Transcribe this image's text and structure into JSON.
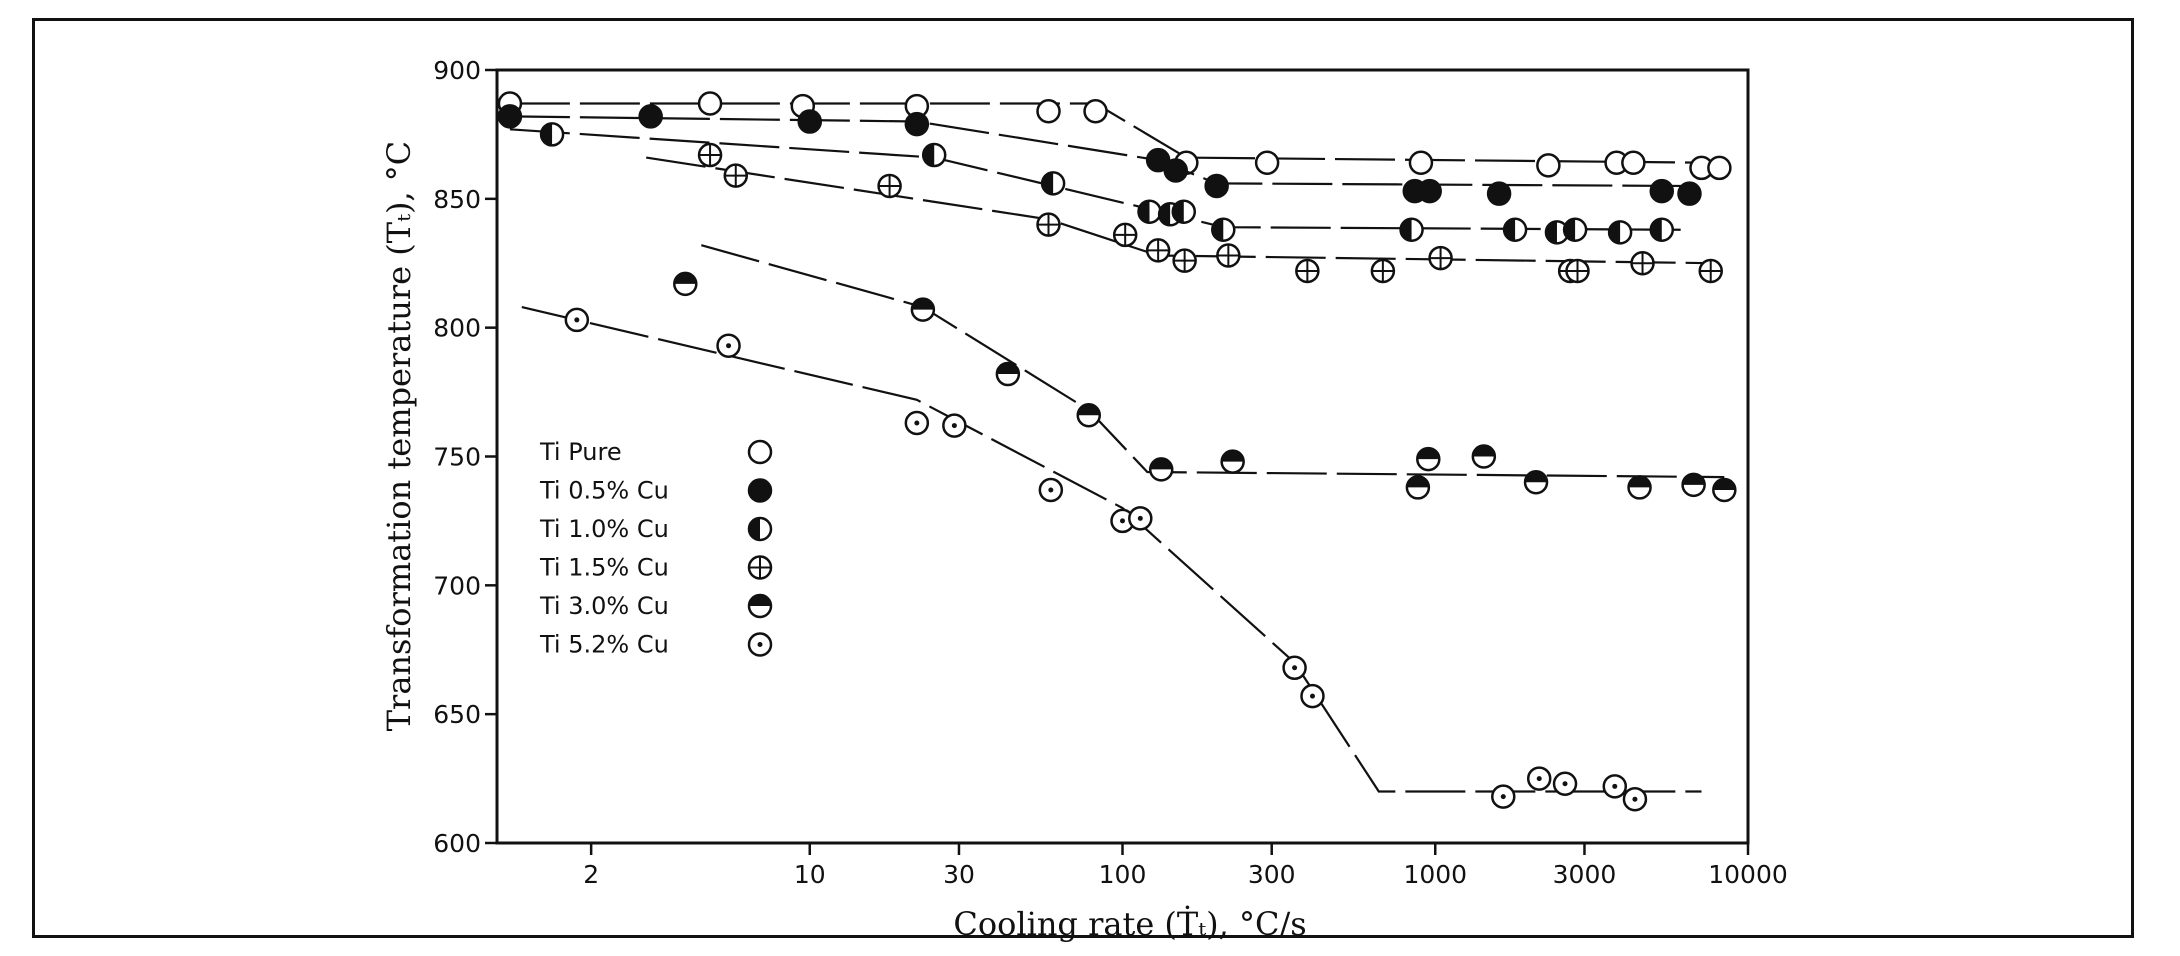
{
  "chart_data": {
    "type": "scatter",
    "title": "",
    "xlabel": "Cooling rate (Ṫₜ), °C/s",
    "ylabel": "Transformation temperature (Tₜ), °C",
    "x_scale": "log",
    "xlim": [
      1,
      10000
    ],
    "ylim": [
      600,
      900
    ],
    "x_ticks": [
      2,
      10,
      30,
      100,
      300,
      1000,
      3000,
      10000
    ],
    "x_tick_labels": [
      "2",
      "10",
      "30",
      "100",
      "300",
      "1000",
      "3000",
      "10000"
    ],
    "y_ticks": [
      600,
      650,
      700,
      750,
      800,
      850,
      900
    ],
    "y_tick_labels": [
      "600",
      "650",
      "700",
      "750",
      "800",
      "850",
      "900"
    ],
    "grid": false,
    "legend_position": "left",
    "series": [
      {
        "name": "Ti Pure",
        "marker": "open-circle",
        "points": [
          [
            1.1,
            887
          ],
          [
            4.8,
            887
          ],
          [
            9.5,
            886
          ],
          [
            22,
            886
          ],
          [
            58,
            884
          ],
          [
            82,
            884
          ],
          [
            160,
            864
          ],
          [
            290,
            864
          ],
          [
            900,
            864
          ],
          [
            2300,
            863
          ],
          [
            3800,
            864
          ],
          [
            4300,
            864
          ],
          [
            7100,
            862
          ],
          [
            8100,
            862
          ]
        ],
        "curve": [
          [
            1.1,
            887
          ],
          [
            82,
            887
          ],
          [
            160,
            866
          ],
          [
            8100,
            864
          ]
        ]
      },
      {
        "name": "Ti 0.5% Cu",
        "marker": "filled-circle",
        "points": [
          [
            1.1,
            882
          ],
          [
            3.1,
            882
          ],
          [
            10,
            880
          ],
          [
            22,
            879
          ],
          [
            130,
            865
          ],
          [
            148,
            861
          ],
          [
            200,
            855
          ],
          [
            860,
            853
          ],
          [
            960,
            853
          ],
          [
            1600,
            852
          ],
          [
            5300,
            853
          ],
          [
            6500,
            852
          ]
        ],
        "curve": [
          [
            1.1,
            882
          ],
          [
            22,
            880
          ],
          [
            130,
            865
          ],
          [
            200,
            856
          ],
          [
            6500,
            855
          ]
        ]
      },
      {
        "name": "Ti 1.0% Cu",
        "marker": "half-circle-left",
        "points": [
          [
            1.5,
            875
          ],
          [
            25,
            867
          ],
          [
            60,
            856
          ],
          [
            122,
            845
          ],
          [
            142,
            844
          ],
          [
            157,
            845
          ],
          [
            210,
            838
          ],
          [
            840,
            838
          ],
          [
            1800,
            838
          ],
          [
            2450,
            837
          ],
          [
            2800,
            838
          ],
          [
            3900,
            837
          ],
          [
            5300,
            838
          ]
        ],
        "curve": [
          [
            1.1,
            877
          ],
          [
            25,
            866
          ],
          [
            122,
            846
          ],
          [
            210,
            839
          ],
          [
            6500,
            838
          ]
        ]
      },
      {
        "name": "Ti 1.5% Cu",
        "marker": "circle-plus",
        "points": [
          [
            4.8,
            867
          ],
          [
            5.8,
            859
          ],
          [
            18,
            855
          ],
          [
            58,
            840
          ],
          [
            102,
            836
          ],
          [
            130,
            830
          ],
          [
            158,
            826
          ],
          [
            218,
            828
          ],
          [
            390,
            822
          ],
          [
            680,
            822
          ],
          [
            1040,
            827
          ],
          [
            2700,
            822
          ],
          [
            2850,
            822
          ],
          [
            4600,
            825
          ],
          [
            7600,
            822
          ]
        ],
        "curve": [
          [
            3,
            866
          ],
          [
            58,
            842
          ],
          [
            130,
            828
          ],
          [
            8100,
            825
          ]
        ]
      },
      {
        "name": "Ti 3.0% Cu",
        "marker": "half-circle-top",
        "points": [
          [
            4,
            817
          ],
          [
            23,
            807
          ],
          [
            43,
            782
          ],
          [
            78,
            766
          ],
          [
            133,
            745
          ],
          [
            225,
            748
          ],
          [
            880,
            738
          ],
          [
            950,
            749
          ],
          [
            1430,
            750
          ],
          [
            2100,
            740
          ],
          [
            4500,
            738
          ],
          [
            6700,
            739
          ],
          [
            8400,
            737
          ]
        ],
        "curve": [
          [
            4.5,
            832
          ],
          [
            23,
            808
          ],
          [
            78,
            768
          ],
          [
            120,
            744
          ],
          [
            8400,
            742
          ]
        ]
      },
      {
        "name": "Ti 5.2% Cu",
        "marker": "circle-dot",
        "points": [
          [
            1.8,
            803
          ],
          [
            5.5,
            793
          ],
          [
            22,
            763
          ],
          [
            29,
            762
          ],
          [
            59,
            737
          ],
          [
            100,
            725
          ],
          [
            114,
            726
          ],
          [
            355,
            668
          ],
          [
            405,
            657
          ],
          [
            1650,
            618
          ],
          [
            2150,
            625
          ],
          [
            2600,
            623
          ],
          [
            3750,
            622
          ],
          [
            4350,
            617
          ]
        ],
        "curve": [
          [
            1.2,
            808
          ],
          [
            22,
            772
          ],
          [
            100,
            730
          ],
          [
            355,
            670
          ],
          [
            660,
            620
          ],
          [
            7100,
            620
          ]
        ]
      }
    ]
  }
}
